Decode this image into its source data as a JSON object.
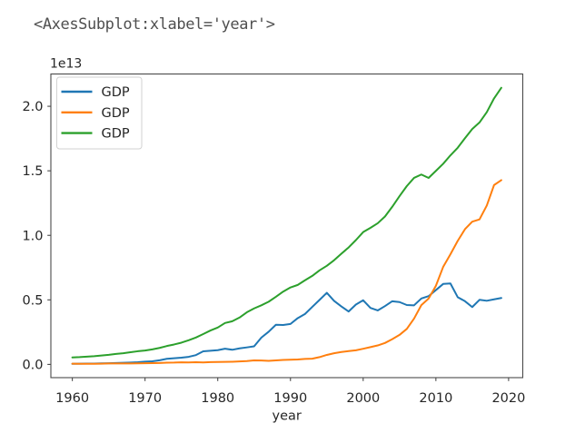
{
  "code_output": {
    "text": "<AxesSubplot:xlabel='year'>"
  },
  "chart_data": {
    "type": "line",
    "title": "",
    "xlabel": "year",
    "ylabel": "",
    "offset_text": "1e13",
    "grid": false,
    "axis_margin_fraction": 0.05,
    "xlim": [
      1957.05,
      2021.95
    ],
    "ylim_1e12": [
      -1.03,
      22.5
    ],
    "x_ticks": [
      1960,
      1970,
      1980,
      1990,
      2000,
      2010,
      2020
    ],
    "y_ticks": [
      {
        "value_1e12": 0,
        "label": "0.0"
      },
      {
        "value_1e12": 5,
        "label": "0.5"
      },
      {
        "value_1e12": 10,
        "label": "1.0"
      },
      {
        "value_1e12": 15,
        "label": "1.5"
      },
      {
        "value_1e12": 20,
        "label": "2.0"
      }
    ],
    "legend": {
      "position": "upper left",
      "entries": [
        {
          "label": "GDP",
          "color": "#1f77b4"
        },
        {
          "label": "GDP",
          "color": "#ff7f0e"
        },
        {
          "label": "GDP",
          "color": "#2ca02c"
        }
      ]
    },
    "x": [
      1960,
      1961,
      1962,
      1963,
      1964,
      1965,
      1966,
      1967,
      1968,
      1969,
      1970,
      1971,
      1972,
      1973,
      1974,
      1975,
      1976,
      1977,
      1978,
      1979,
      1980,
      1981,
      1982,
      1983,
      1984,
      1985,
      1986,
      1987,
      1988,
      1989,
      1990,
      1991,
      1992,
      1993,
      1994,
      1995,
      1996,
      1997,
      1998,
      1999,
      2000,
      2001,
      2002,
      2003,
      2004,
      2005,
      2006,
      2007,
      2008,
      2009,
      2010,
      2011,
      2012,
      2013,
      2014,
      2015,
      2016,
      2017,
      2018,
      2019
    ],
    "series": [
      {
        "name": "GDP",
        "color": "#1f77b4",
        "values_1e12": [
          0.0443,
          0.0536,
          0.0607,
          0.0695,
          0.0818,
          0.091,
          0.1058,
          0.1237,
          0.1466,
          0.1722,
          0.2127,
          0.2402,
          0.3181,
          0.4325,
          0.4798,
          0.5213,
          0.5863,
          0.7214,
          1.013,
          1.0554,
          1.1054,
          1.2189,
          1.1342,
          1.2432,
          1.3185,
          1.401,
          2.0787,
          2.5325,
          3.0717,
          3.0545,
          3.133,
          3.5848,
          3.9089,
          4.4548,
          4.9981,
          5.5457,
          4.9237,
          4.4925,
          4.0983,
          4.6355,
          4.9683,
          4.3746,
          4.1823,
          4.5191,
          4.8934,
          4.8311,
          4.6013,
          4.5793,
          5.1068,
          5.2891,
          5.7591,
          6.2333,
          6.2722,
          5.2124,
          4.897,
          4.4443,
          5.0037,
          4.9309,
          5.0408,
          5.1485
        ]
      },
      {
        "name": "GDP",
        "color": "#ff7f0e",
        "values_1e12": [
          0.0597,
          0.05,
          0.0472,
          0.0507,
          0.0597,
          0.0702,
          0.0767,
          0.0727,
          0.0707,
          0.0795,
          0.0926,
          0.099,
          0.1132,
          0.1386,
          0.1442,
          0.1634,
          0.1539,
          0.1749,
          0.1495,
          0.1782,
          0.1911,
          0.1959,
          0.2054,
          0.2306,
          0.2599,
          0.3095,
          0.3008,
          0.2729,
          0.3123,
          0.3478,
          0.3609,
          0.3834,
          0.4267,
          0.4447,
          0.5645,
          0.7345,
          0.8637,
          0.9616,
          1.0294,
          1.0941,
          1.2113,
          1.3394,
          1.4705,
          1.6602,
          1.9553,
          2.286,
          2.7522,
          3.5503,
          4.5943,
          5.1017,
          6.0873,
          7.5516,
          8.5323,
          9.5704,
          10.4756,
          11.0616,
          11.2333,
          12.3104,
          13.8949,
          14.2799
        ]
      },
      {
        "name": "GDP",
        "color": "#2ca02c",
        "values_1e12": [
          0.5433,
          0.5633,
          0.6051,
          0.6386,
          0.6858,
          0.7437,
          0.815,
          0.8617,
          0.9425,
          1.0199,
          1.0734,
          1.1648,
          1.279,
          1.4256,
          1.5452,
          1.6849,
          1.8732,
          2.0819,
          2.3517,
          2.6271,
          2.8571,
          3.207,
          3.344,
          3.6341,
          4.0378,
          4.3389,
          4.5796,
          4.8554,
          5.2364,
          5.6418,
          5.963,
          6.1582,
          6.5201,
          6.8586,
          7.2872,
          7.6398,
          8.0732,
          8.5776,
          9.0627,
          9.6306,
          10.2525,
          10.5818,
          10.9363,
          11.4583,
          12.2135,
          13.0368,
          13.8146,
          14.4519,
          14.7128,
          14.4489,
          14.9921,
          15.5426,
          16.1971,
          16.7848,
          17.5272,
          18.2384,
          18.7451,
          19.5429,
          20.6119,
          21.4332
        ]
      }
    ]
  }
}
